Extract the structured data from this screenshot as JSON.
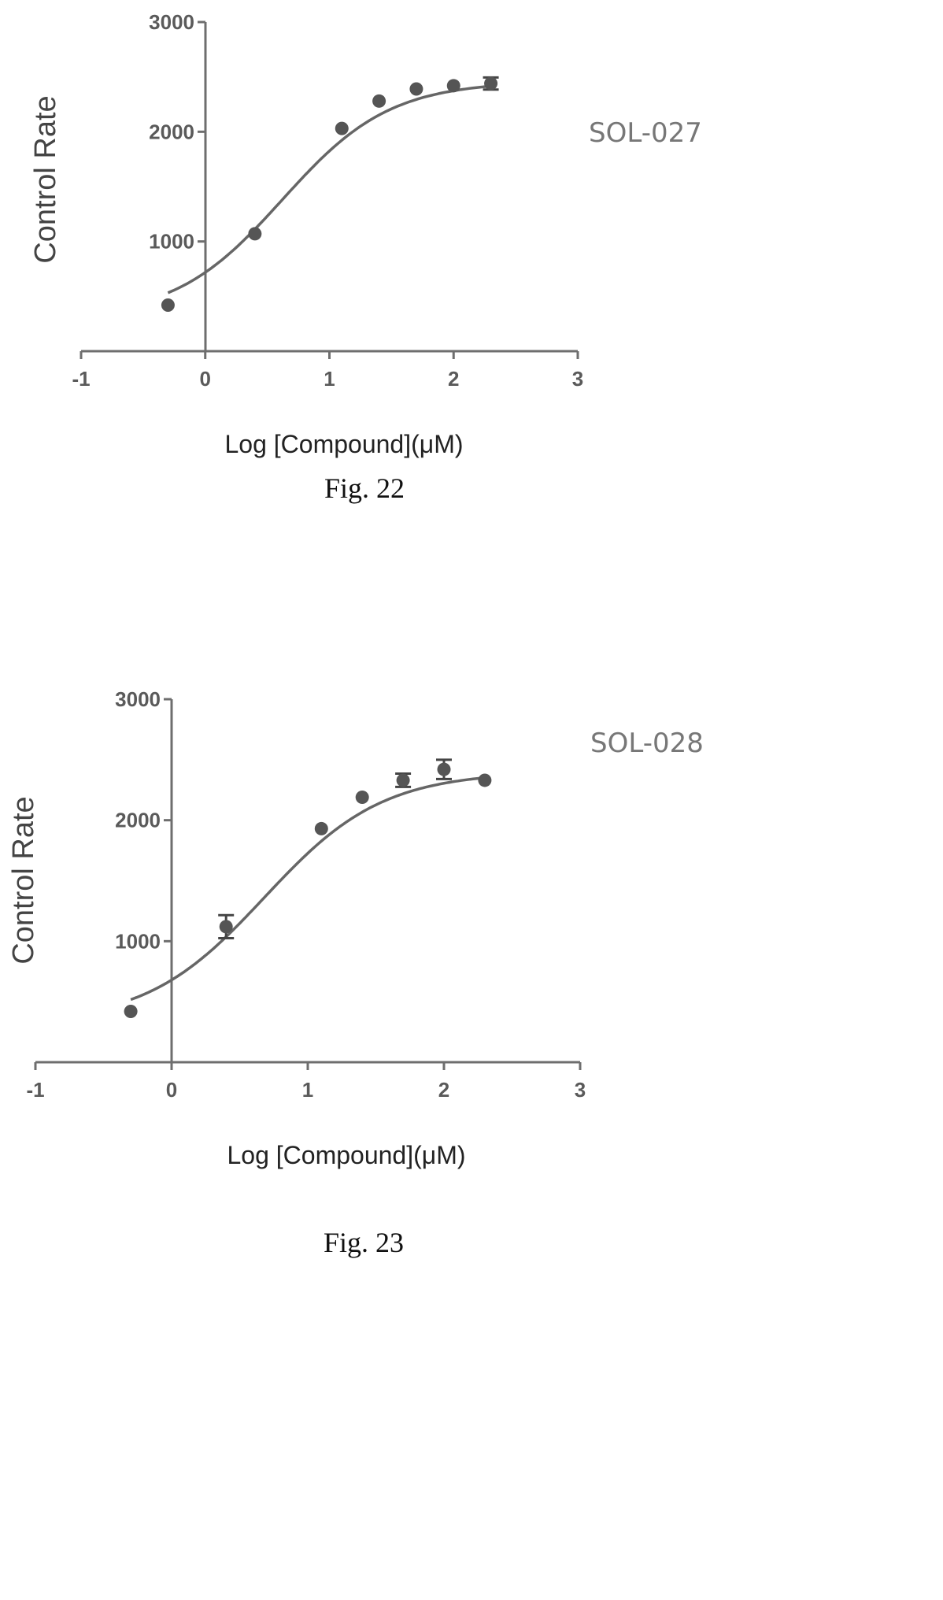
{
  "chart_data": [
    {
      "type": "line",
      "figure": "Fig. 22",
      "series_label": "SOL-027",
      "xlabel": "Log [Compound](μM)",
      "ylabel": "Control Rate",
      "xlim": [
        -1,
        3
      ],
      "ylim": [
        0,
        3000
      ],
      "x_ticks": [
        "-1",
        "0",
        "1",
        "2",
        "3"
      ],
      "y_ticks": [
        "1000",
        "2000",
        "3000"
      ],
      "grid": false,
      "fit": {
        "bottom": 300,
        "top": 2460,
        "logEC50": 0.62,
        "hill": 1.0
      },
      "points": [
        {
          "x": -0.3,
          "y": 420,
          "err": 0
        },
        {
          "x": 0.4,
          "y": 1070,
          "err": 0
        },
        {
          "x": 1.1,
          "y": 2030,
          "err": 0
        },
        {
          "x": 1.4,
          "y": 2280,
          "err": 0
        },
        {
          "x": 1.7,
          "y": 2390,
          "err": 0
        },
        {
          "x": 2.0,
          "y": 2420,
          "err": 0
        },
        {
          "x": 2.3,
          "y": 2440,
          "err": 55
        }
      ]
    },
    {
      "type": "line",
      "figure": "Fig. 23",
      "series_label": "SOL-028",
      "xlabel": "Log [Compound](μM)",
      "ylabel": "Control Rate",
      "xlim": [
        -1,
        3
      ],
      "ylim": [
        0,
        3000
      ],
      "x_ticks": [
        "-1",
        "0",
        "1",
        "2",
        "3"
      ],
      "y_ticks": [
        "1000",
        "2000",
        "3000"
      ],
      "grid": false,
      "fit": {
        "bottom": 320,
        "top": 2400,
        "logEC50": 0.68,
        "hill": 1.0
      },
      "points": [
        {
          "x": -0.3,
          "y": 420,
          "err": 0
        },
        {
          "x": 0.4,
          "y": 1120,
          "err": 95
        },
        {
          "x": 1.1,
          "y": 1930,
          "err": 0
        },
        {
          "x": 1.4,
          "y": 2190,
          "err": 0
        },
        {
          "x": 1.7,
          "y": 2330,
          "err": 55
        },
        {
          "x": 2.0,
          "y": 2420,
          "err": 80
        },
        {
          "x": 2.3,
          "y": 2330,
          "err": 0
        }
      ]
    }
  ]
}
